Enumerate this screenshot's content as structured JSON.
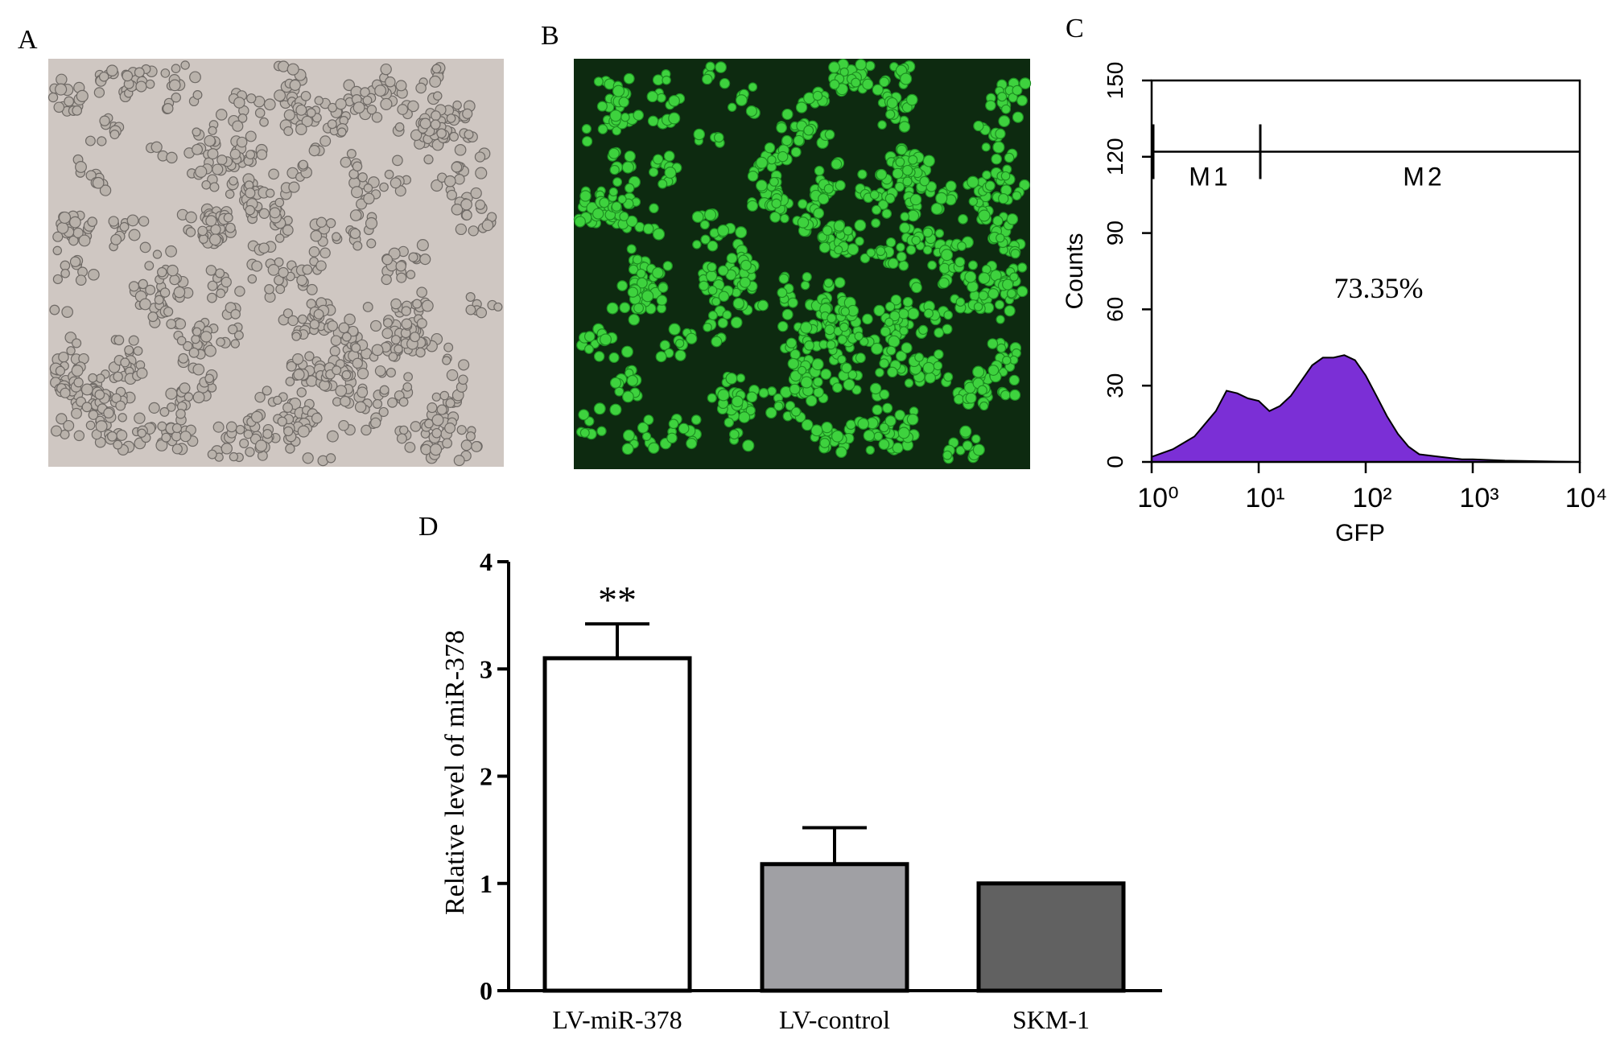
{
  "panel_labels": [
    "A",
    "B",
    "C",
    "D"
  ],
  "chart_data": [
    {
      "type": "area",
      "x_label": "GFP",
      "y_label": "Counts",
      "annotation": "73.35%",
      "color": "#7b2fd6",
      "x_scale": "log",
      "xlim": [
        1,
        10000
      ],
      "xticks": [
        {
          "value": 1,
          "label": "10⁰"
        },
        {
          "value": 10,
          "label": "10¹"
        },
        {
          "value": 100,
          "label": "10²"
        },
        {
          "value": 1000,
          "label": "10³"
        },
        {
          "value": 10000,
          "label": "10⁴"
        }
      ],
      "ylim": [
        0,
        150
      ],
      "yticks": [
        0,
        30,
        60,
        90,
        120,
        150
      ],
      "x": [
        1,
        1.58,
        2.51,
        3.98,
        5.01,
        6.31,
        7.94,
        10,
        12.6,
        15.8,
        20,
        25.1,
        31.6,
        39.8,
        50.1,
        63.1,
        79.4,
        100,
        126,
        158,
        200,
        251,
        316,
        501,
        794,
        1000,
        2000,
        10000
      ],
      "values": [
        2,
        5,
        10,
        20,
        28,
        27,
        25,
        24,
        20,
        22,
        26,
        32,
        38,
        41,
        41,
        42,
        40,
        34,
        26,
        18,
        11,
        6,
        3,
        2,
        1,
        1,
        0.5,
        0
      ],
      "gates": [
        {
          "label": "M1",
          "xrange": [
            1,
            10
          ]
        },
        {
          "label": "M2",
          "xrange": [
            10,
            10000
          ]
        }
      ],
      "gate_y": 122
    },
    {
      "type": "bar",
      "y_label": "Relative level of miR-378",
      "categories": [
        "LV-miR-378",
        "LV-control",
        "SKM-1"
      ],
      "values": [
        3.1,
        1.18,
        1.0
      ],
      "errors": [
        0.32,
        0.34,
        null
      ],
      "colors": [
        "#ffffff",
        "#a0a0a4",
        "#616161"
      ],
      "ylim": [
        0,
        4
      ],
      "yticks": [
        0,
        1,
        2,
        3,
        4
      ],
      "annotations": [
        {
          "text": "**",
          "category": 0
        }
      ]
    }
  ]
}
